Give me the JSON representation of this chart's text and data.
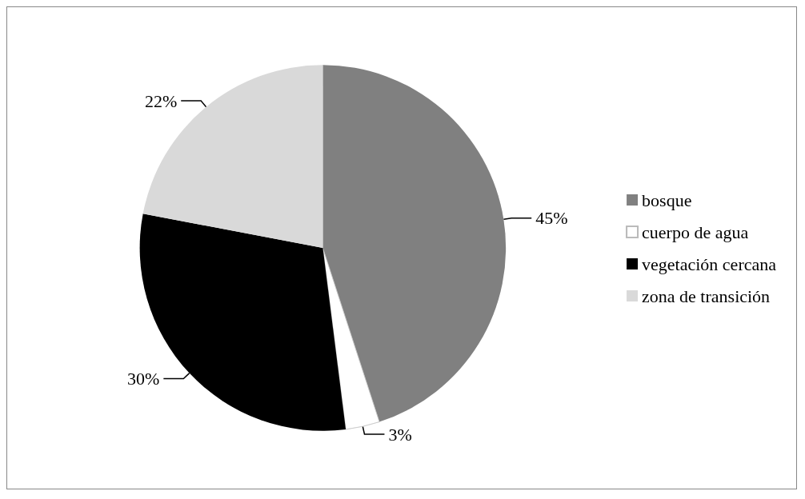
{
  "chart_data": {
    "type": "pie",
    "categories": [
      "bosque",
      "cuerpo de agua",
      "vegetación cercana",
      "zona de transición"
    ],
    "values": [
      45,
      3,
      30,
      22
    ],
    "value_labels": [
      "45%",
      "3%",
      "30%",
      "22%"
    ],
    "colors": [
      "#808080",
      "#ffffff",
      "#000000",
      "#d9d9d9"
    ],
    "legend": "right"
  }
}
